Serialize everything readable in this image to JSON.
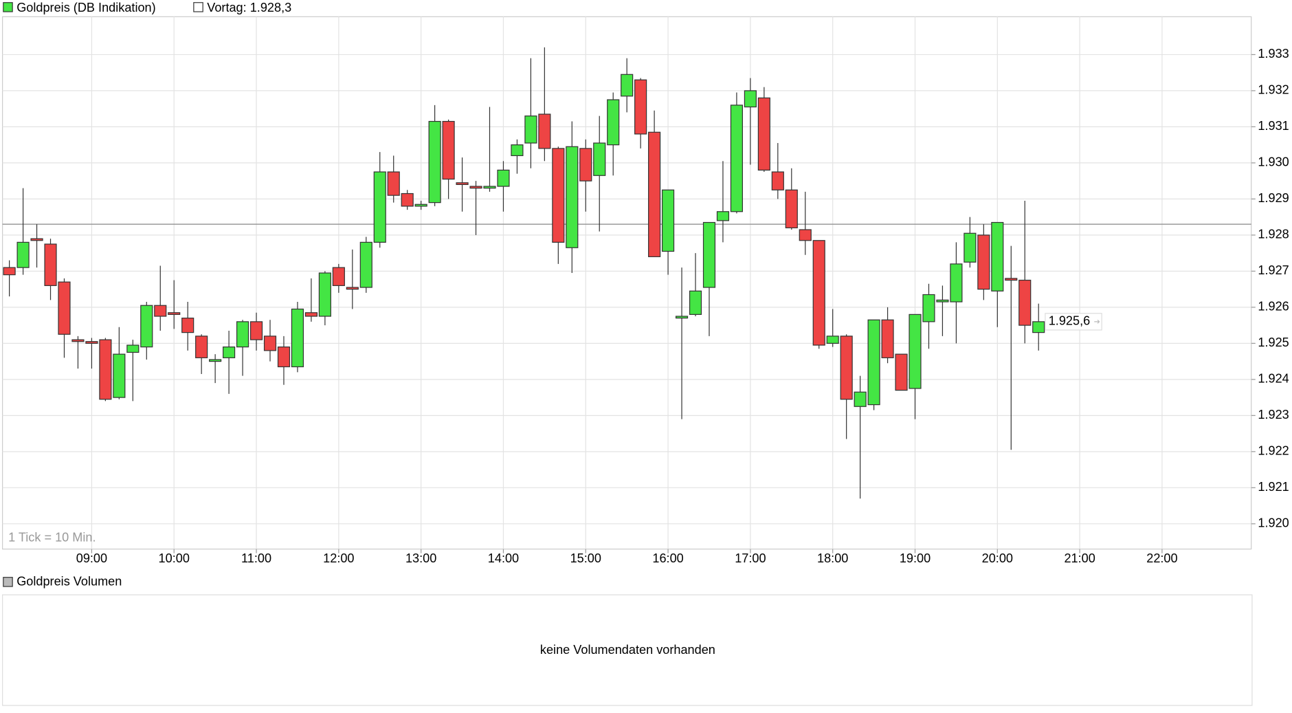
{
  "chart_data": {
    "type": "candlestick",
    "name": "Goldpreis (DB Indikation)",
    "up_color": "#44e544",
    "down_color": "#ee4444",
    "reference": {
      "value": 1928.3,
      "label": "Vortag: 1.928,3"
    },
    "last_price": {
      "value": 1925.6,
      "label": "1.925,6"
    },
    "tick_note": "1 Tick = 10 Min.",
    "grid": true,
    "x": [
      "08:00",
      "08:10",
      "08:20",
      "08:30",
      "08:40",
      "08:50",
      "09:00",
      "09:10",
      "09:20",
      "09:30",
      "09:40",
      "09:50",
      "10:00",
      "10:10",
      "10:20",
      "10:30",
      "10:40",
      "10:50",
      "11:00",
      "11:10",
      "11:20",
      "11:30",
      "11:40",
      "11:50",
      "12:00",
      "12:10",
      "12:20",
      "12:30",
      "12:40",
      "12:50",
      "13:00",
      "13:10",
      "13:20",
      "13:30",
      "13:40",
      "13:50",
      "14:00",
      "14:10",
      "14:20",
      "14:30",
      "14:40",
      "14:50",
      "15:00",
      "15:10",
      "15:20",
      "15:30",
      "15:40",
      "15:50",
      "16:00",
      "16:10",
      "16:20",
      "16:30",
      "16:40",
      "16:50",
      "17:00",
      "17:10",
      "17:20",
      "17:30",
      "17:40",
      "17:50",
      "18:00",
      "18:10",
      "18:20",
      "18:30",
      "18:40",
      "18:50",
      "19:00",
      "19:10",
      "19:20",
      "19:30",
      "19:40",
      "19:50",
      "20:00",
      "20:10",
      "20:20",
      "20:30"
    ],
    "open": [
      1927.1,
      1927.1,
      1927.9,
      1927.75,
      1926.7,
      1925.1,
      1925.05,
      1925.1,
      1923.5,
      1924.75,
      1924.9,
      1926.05,
      1925.85,
      1925.7,
      1925.2,
      1924.5,
      1924.6,
      1924.9,
      1925.6,
      1925.2,
      1924.9,
      1924.35,
      1925.85,
      1925.75,
      1927.1,
      1926.55,
      1926.55,
      1927.8,
      1929.75,
      1929.15,
      1928.8,
      1928.9,
      1931.15,
      1929.45,
      1929.35,
      1929.3,
      1929.35,
      1930.2,
      1930.55,
      1931.35,
      1930.4,
      1927.65,
      1930.4,
      1929.65,
      1930.5,
      1931.85,
      1932.3,
      1930.85,
      1927.55,
      1925.7,
      1925.8,
      1926.55,
      1928.4,
      1928.65,
      1931.55,
      1931.8,
      1929.75,
      1929.25,
      1928.15,
      1927.85,
      1925.0,
      1925.2,
      1923.25,
      1923.3,
      1925.65,
      1924.7,
      1923.75,
      1925.6,
      1926.15,
      1926.15,
      1927.25,
      1928.0,
      1926.45,
      1926.8,
      1926.75,
      1925.3
    ],
    "high": [
      1927.3,
      1929.3,
      1928.3,
      1927.9,
      1926.8,
      1925.2,
      1925.15,
      1925.15,
      1925.45,
      1925.1,
      1926.15,
      1927.15,
      1926.75,
      1926.15,
      1925.25,
      1924.7,
      1925.35,
      1925.65,
      1925.85,
      1925.65,
      1925.2,
      1926.15,
      1926.8,
      1927.0,
      1927.2,
      1927.6,
      1927.95,
      1930.3,
      1930.2,
      1929.25,
      1928.95,
      1931.6,
      1931.2,
      1930.15,
      1929.5,
      1931.55,
      1930.05,
      1930.65,
      1932.9,
      1933.2,
      1930.45,
      1931.15,
      1930.65,
      1931.3,
      1931.95,
      1932.9,
      1932.35,
      1931.45,
      1929.25,
      1927.1,
      1927.5,
      1928.35,
      1930.05,
      1931.95,
      1932.35,
      1932.1,
      1930.55,
      1929.85,
      1929.2,
      1927.85,
      1925.95,
      1925.25,
      1924.1,
      1925.65,
      1926.0,
      1924.7,
      1925.8,
      1926.65,
      1926.6,
      1927.8,
      1928.5,
      1928.3,
      1928.35,
      1927.7,
      1928.95,
      1926.1
    ],
    "low": [
      1926.3,
      1926.9,
      1927.1,
      1926.2,
      1924.6,
      1924.3,
      1924.3,
      1923.4,
      1923.45,
      1923.4,
      1924.55,
      1925.35,
      1925.4,
      1924.8,
      1924.15,
      1923.9,
      1923.6,
      1924.1,
      1924.8,
      1924.5,
      1923.85,
      1924.2,
      1925.6,
      1925.5,
      1926.4,
      1925.95,
      1926.4,
      1927.65,
      1928.9,
      1928.7,
      1928.7,
      1928.8,
      1929.0,
      1928.65,
      1928.0,
      1929.2,
      1928.65,
      1929.7,
      1929.85,
      1930.05,
      1927.2,
      1926.95,
      1928.65,
      1928.1,
      1929.65,
      1931.4,
      1930.4,
      1927.4,
      1926.9,
      1922.9,
      1925.75,
      1925.2,
      1927.8,
      1928.6,
      1929.95,
      1929.75,
      1929.0,
      1928.15,
      1927.45,
      1924.85,
      1924.9,
      1922.35,
      1920.7,
      1923.15,
      1924.45,
      1923.7,
      1922.9,
      1924.85,
      1925.2,
      1925.0,
      1927.1,
      1926.2,
      1925.45,
      1922.05,
      1925.0,
      1924.8
    ],
    "close": [
      1926.9,
      1927.8,
      1927.85,
      1926.6,
      1925.25,
      1925.05,
      1925.0,
      1923.45,
      1924.7,
      1924.95,
      1926.05,
      1925.75,
      1925.8,
      1925.3,
      1924.6,
      1924.55,
      1924.9,
      1925.6,
      1925.1,
      1924.8,
      1924.35,
      1925.95,
      1925.75,
      1926.95,
      1926.6,
      1926.5,
      1927.8,
      1929.75,
      1929.1,
      1928.8,
      1928.85,
      1931.15,
      1929.55,
      1929.4,
      1929.3,
      1929.35,
      1929.8,
      1930.5,
      1931.3,
      1930.4,
      1927.8,
      1930.45,
      1929.5,
      1930.55,
      1931.75,
      1932.45,
      1930.8,
      1927.4,
      1929.25,
      1925.75,
      1926.45,
      1928.35,
      1928.65,
      1931.6,
      1932.0,
      1929.8,
      1929.25,
      1928.2,
      1927.85,
      1924.95,
      1925.2,
      1923.45,
      1923.65,
      1925.65,
      1924.6,
      1923.7,
      1925.8,
      1926.35,
      1926.2,
      1927.2,
      1928.05,
      1926.5,
      1928.35,
      1926.75,
      1925.5,
      1925.6
    ],
    "xlim": [
      "07:55",
      "23:05"
    ],
    "xticks": [
      "09:00",
      "10:00",
      "11:00",
      "12:00",
      "13:00",
      "14:00",
      "15:00",
      "16:00",
      "17:00",
      "18:00",
      "19:00",
      "20:00",
      "21:00",
      "22:00"
    ],
    "ylim": [
      1919.3,
      1934.05
    ],
    "yticks": [
      {
        "value": 1920,
        "label": "1.920"
      },
      {
        "value": 1921,
        "label": "1.921"
      },
      {
        "value": 1922,
        "label": "1.922"
      },
      {
        "value": 1923,
        "label": "1.923"
      },
      {
        "value": 1924,
        "label": "1.924"
      },
      {
        "value": 1925,
        "label": "1.925"
      },
      {
        "value": 1926,
        "label": "1.926"
      },
      {
        "value": 1927,
        "label": "1.927"
      },
      {
        "value": 1928,
        "label": "1.928"
      },
      {
        "value": 1929,
        "label": "1.929"
      },
      {
        "value": 1930,
        "label": "1.930"
      },
      {
        "value": 1931,
        "label": "1.931"
      },
      {
        "value": 1932,
        "label": "1.932"
      },
      {
        "value": 1933,
        "label": "1.933"
      }
    ],
    "volume": {
      "name": "Goldpreis Volumen",
      "note": "keine Volumendaten vorhanden"
    }
  }
}
